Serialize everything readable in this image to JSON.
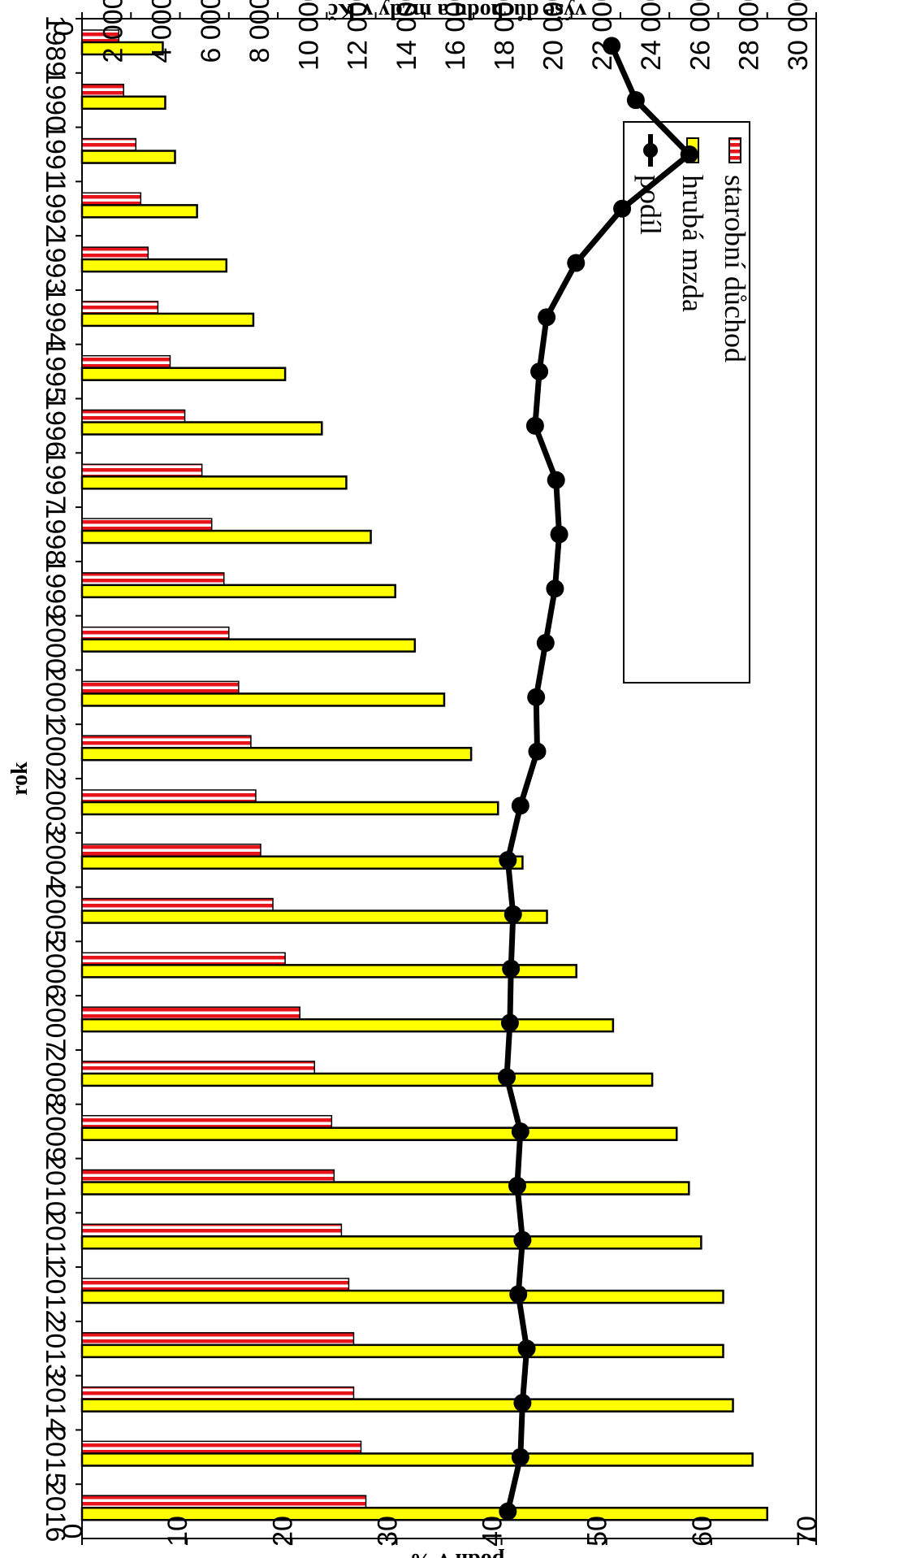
{
  "chart_data": {
    "type": "bar",
    "categories": [
      "1989",
      "1990",
      "1991",
      "1992",
      "1993",
      "1994",
      "1995",
      "1996",
      "1997",
      "1998",
      "1999",
      "2000",
      "2001",
      "2002",
      "2003",
      "2004",
      "2005",
      "2006",
      "2007",
      "2008",
      "2009",
      "2010",
      "2011",
      "2012",
      "2013",
      "2014",
      "2015",
      "2016"
    ],
    "xlabel": "rok",
    "ylabel": "výše důchodu a mzdy v Kč",
    "y2label": "podíl v %",
    "ylim": [
      0,
      30000
    ],
    "y2lim": [
      0,
      70
    ],
    "yticks": [
      "0",
      "2 000",
      "4 000",
      "6 000",
      "8 000",
      "10 000",
      "12 000",
      "14 000",
      "16 000",
      "18 000",
      "20 000",
      "22 000",
      "24 000",
      "26 000",
      "28 000",
      "30 000"
    ],
    "y2ticks": [
      "0",
      "10",
      "20",
      "30",
      "40",
      "50",
      "60",
      "70"
    ],
    "grid": false,
    "legend_position": "top-left",
    "series": [
      {
        "name": "starobní důchod",
        "kind": "bar",
        "color": "#e8141c",
        "pattern": "vertical-stripes",
        "values": [
          1500,
          1700,
          2200,
          2400,
          2700,
          3100,
          3600,
          4200,
          4900,
          5300,
          5800,
          6000,
          6400,
          6900,
          7100,
          7300,
          7800,
          8300,
          8900,
          9500,
          10200,
          10300,
          10600,
          10900,
          11100,
          11100,
          11400,
          11600
        ]
      },
      {
        "name": "hrubá mzda",
        "kind": "bar",
        "color": "#ffff00",
        "values": [
          3300,
          3400,
          3800,
          4700,
          5900,
          7000,
          8300,
          9800,
          10800,
          11800,
          12800,
          13600,
          14800,
          15900,
          17000,
          18000,
          19000,
          20200,
          21700,
          23300,
          24300,
          24800,
          25300,
          26200,
          26200,
          26600,
          27400,
          28000
        ]
      },
      {
        "name": "podíl",
        "kind": "line",
        "axis": "secondary",
        "color": "#000000",
        "values": [
          50.5,
          52.8,
          57.9,
          51.5,
          47.1,
          44.3,
          43.6,
          43.2,
          45.2,
          45.5,
          45.1,
          44.2,
          43.3,
          43.4,
          41.8,
          40.6,
          41.1,
          40.9,
          40.8,
          40.5,
          41.8,
          41.5,
          42.0,
          41.6,
          42.4,
          42.0,
          41.8,
          40.6
        ]
      }
    ]
  }
}
